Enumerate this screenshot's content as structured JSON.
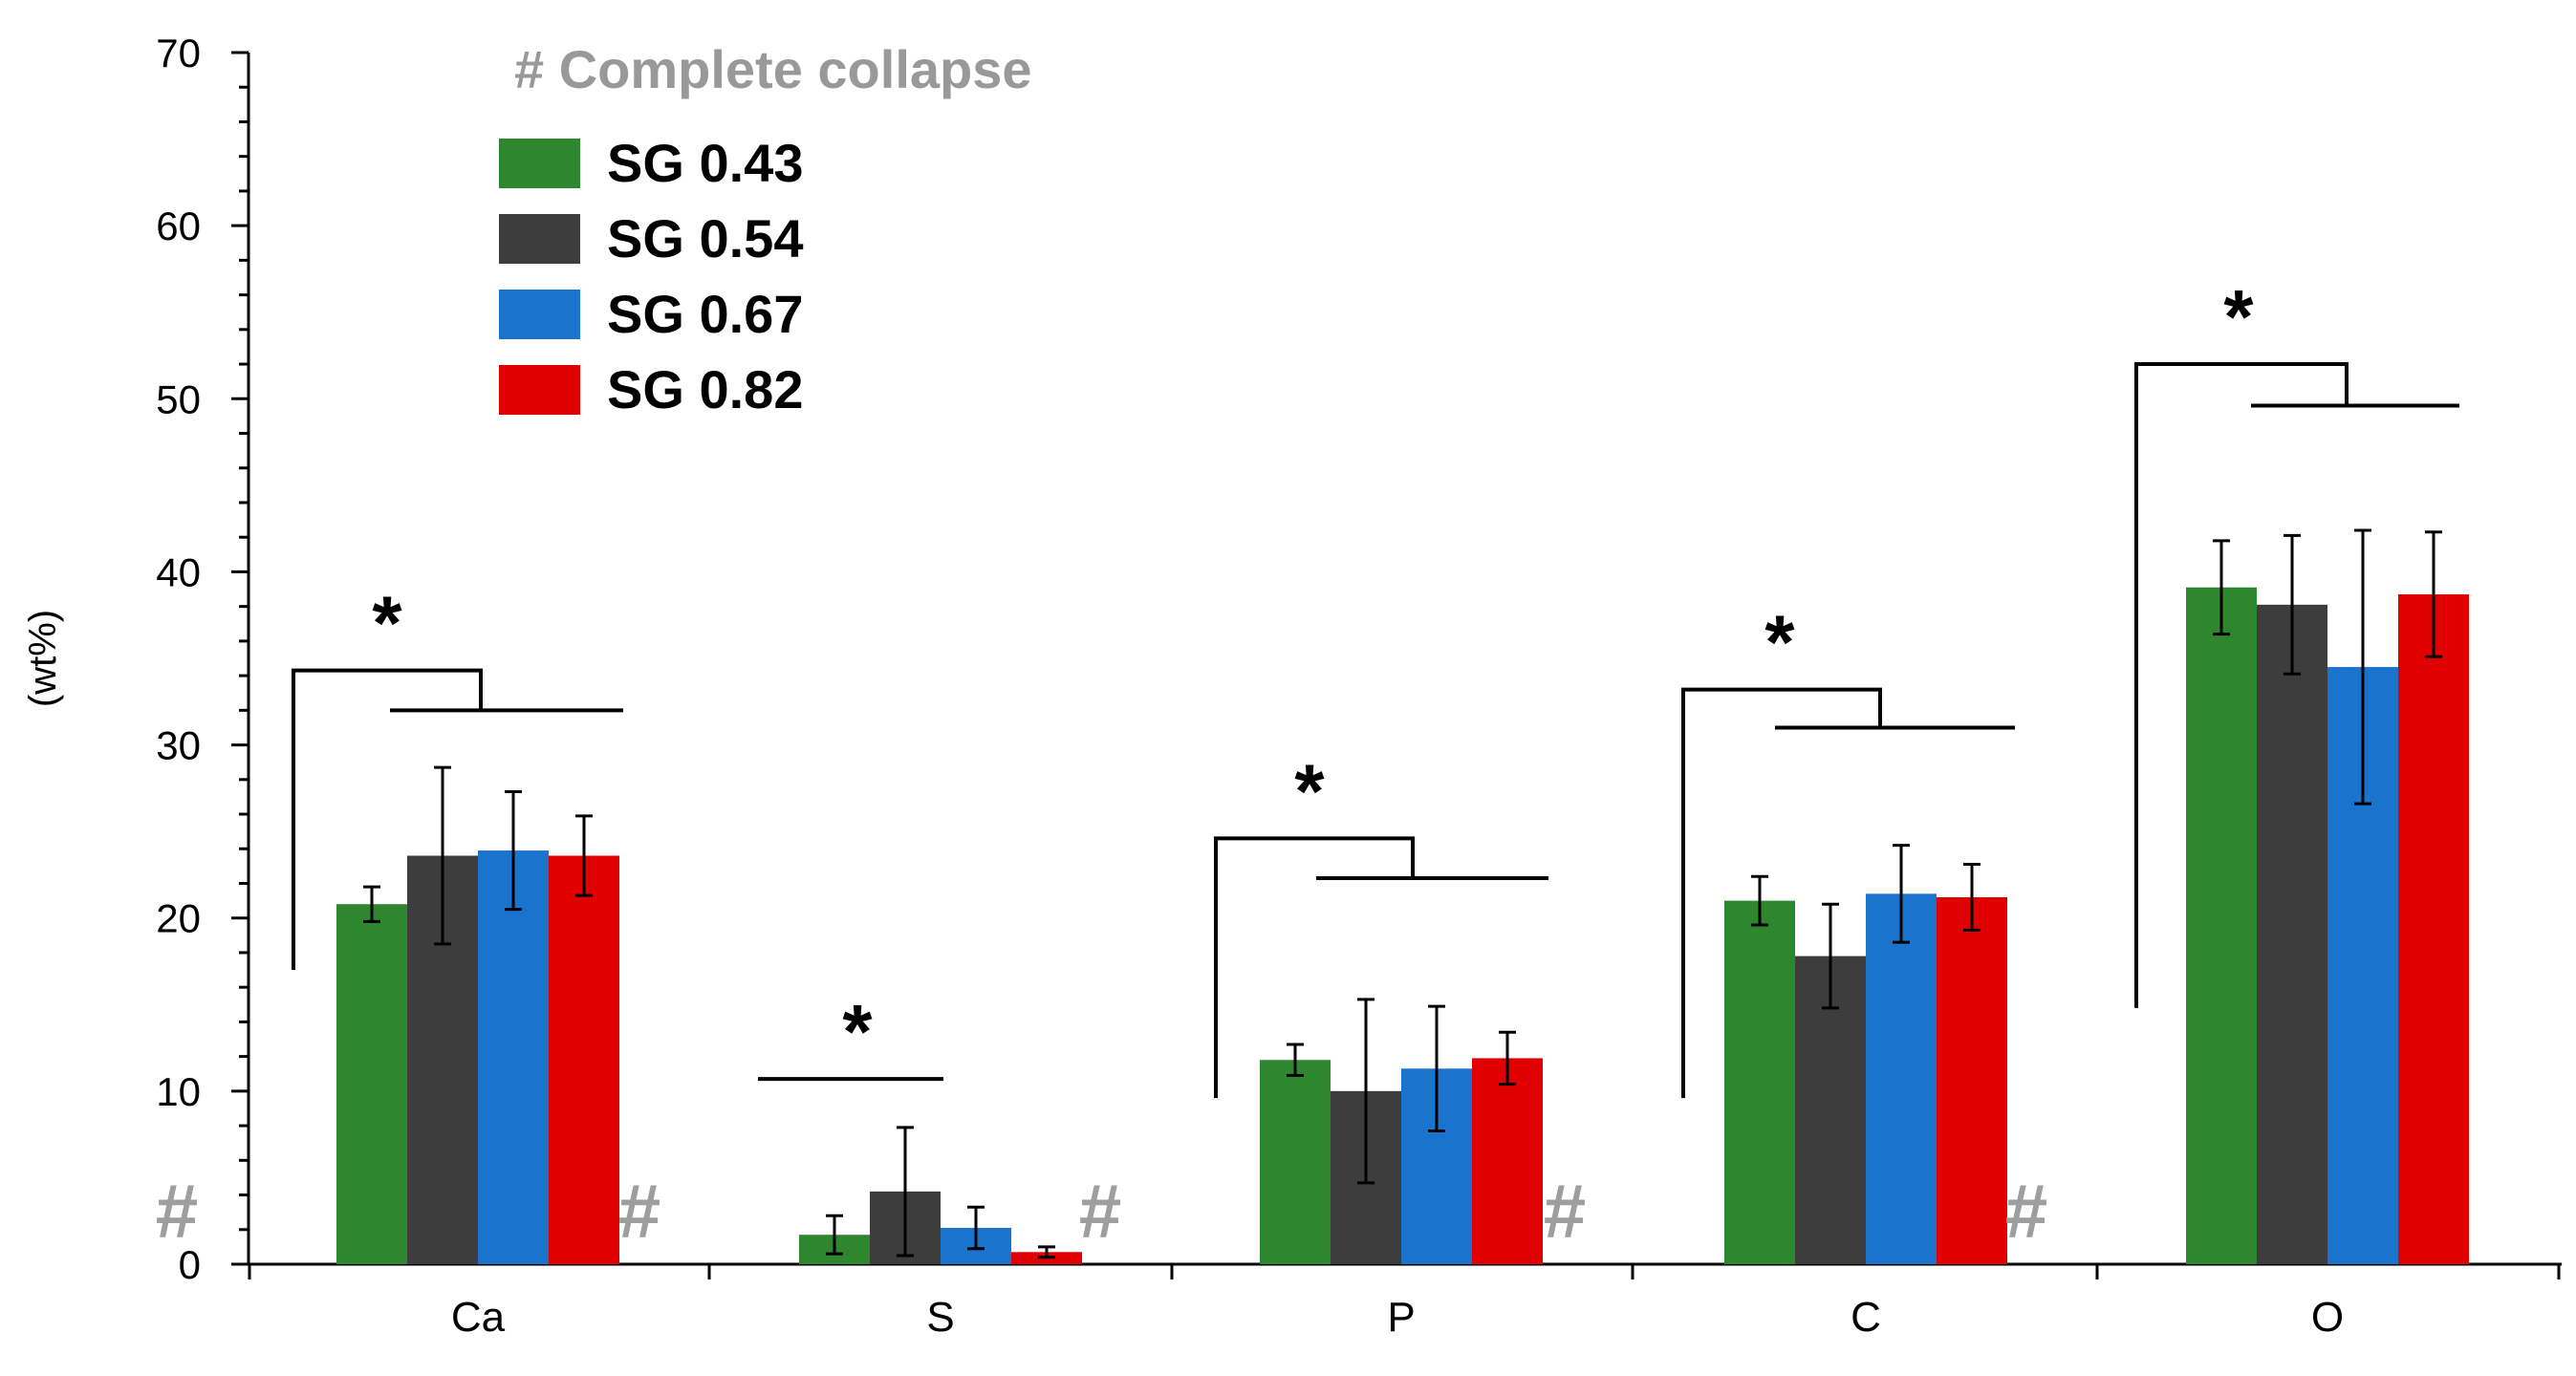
{
  "chart_data": {
    "type": "bar",
    "title": "",
    "xlabel": "",
    "ylabel": "(wt%)",
    "ylim": [
      0,
      70
    ],
    "yticks": [
      0,
      10,
      20,
      30,
      40,
      50,
      60,
      70
    ],
    "grid": false,
    "legend_position": "top-left",
    "categories": [
      "Ca",
      "S",
      "P",
      "C",
      "O"
    ],
    "series": [
      {
        "name": "SG 0.43",
        "color": "#2e862e",
        "values": [
          20.8,
          1.7,
          11.8,
          21.0,
          39.1
        ],
        "errors": [
          1.0,
          1.1,
          0.9,
          1.4,
          2.7
        ]
      },
      {
        "name": "SG 0.54",
        "color": "#3d3d3d",
        "values": [
          23.6,
          4.2,
          10.0,
          17.8,
          38.1
        ],
        "errors": [
          5.1,
          3.7,
          5.3,
          3.0,
          4.0
        ]
      },
      {
        "name": "SG 0.67",
        "color": "#1a73cc",
        "values": [
          23.9,
          2.1,
          11.3,
          21.4,
          34.5
        ],
        "errors": [
          3.4,
          1.2,
          3.6,
          2.8,
          7.9
        ]
      },
      {
        "name": "SG 0.82",
        "color": "#e00000",
        "values": [
          23.6,
          0.7,
          11.9,
          21.2,
          38.7
        ],
        "errors": [
          2.3,
          0.3,
          1.5,
          1.9,
          3.6
        ]
      }
    ],
    "annotations": {
      "collapse_note": "# Complete collapse",
      "collapse_marker": "#",
      "significance_marker": "*"
    }
  },
  "colors": {
    "axis": "#000000",
    "collapse_marker": "#9e9e9e"
  }
}
